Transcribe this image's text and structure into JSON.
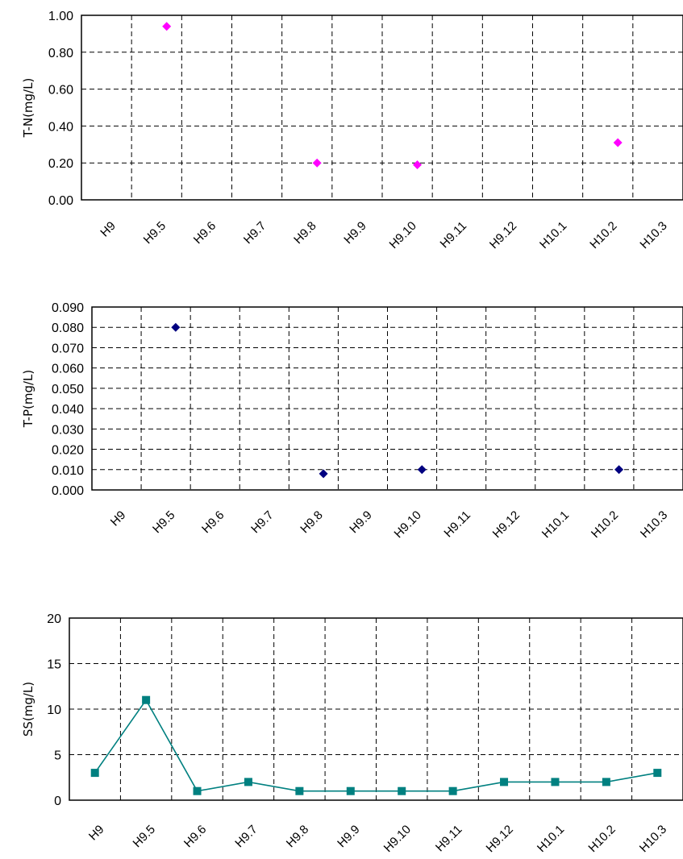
{
  "chart_data": [
    {
      "type": "scatter",
      "ylabel": "T-N(mg/L)",
      "categories": [
        "H9",
        "H9.5",
        "H9.6",
        "H9.7",
        "H9.8",
        "H9.9",
        "H9.10",
        "H9.11",
        "H9.12",
        "H10.1",
        "H10.2",
        "H10.3"
      ],
      "ylim": [
        0,
        1.0
      ],
      "yticks": [
        "0.00",
        "0.20",
        "0.40",
        "0.60",
        "0.80",
        "1.00"
      ],
      "grid": true,
      "marker_color": "#ff00ff",
      "marker": "diamond",
      "series": [
        {
          "points": [
            {
              "x": 1.2,
              "y": 0.94
            },
            {
              "x": 4.2,
              "y": 0.2
            },
            {
              "x": 6.2,
              "y": 0.19
            },
            {
              "x": 10.2,
              "y": 0.31
            }
          ]
        }
      ]
    },
    {
      "type": "scatter",
      "ylabel": "T-P(mg/L)",
      "categories": [
        "H9",
        "H9.5",
        "H9.6",
        "H9.7",
        "H9.8",
        "H9.9",
        "H9.10",
        "H9.11",
        "H9.12",
        "H10.1",
        "H10.2",
        "H10.3"
      ],
      "ylim": [
        0,
        0.09
      ],
      "yticks": [
        "0.000",
        "0.010",
        "0.020",
        "0.030",
        "0.040",
        "0.050",
        "0.060",
        "0.070",
        "0.080",
        "0.090"
      ],
      "grid": true,
      "marker_color": "#000080",
      "marker": "diamond",
      "series": [
        {
          "points": [
            {
              "x": 1.2,
              "y": 0.08
            },
            {
              "x": 4.2,
              "y": 0.008
            },
            {
              "x": 6.2,
              "y": 0.01
            },
            {
              "x": 10.2,
              "y": 0.01
            }
          ]
        }
      ]
    },
    {
      "type": "line",
      "ylabel": "SS(mg/L)",
      "categories": [
        "H9",
        "H9.5",
        "H9.6",
        "H9.7",
        "H9.8",
        "H9.9",
        "H9.10",
        "H9.11",
        "H9.12",
        "H10.1",
        "H10.2",
        "H10.3"
      ],
      "ylim": [
        0,
        20
      ],
      "yticks": [
        "0",
        "5",
        "10",
        "15",
        "20"
      ],
      "grid": true,
      "marker_color": "#008080",
      "marker": "square",
      "series": [
        {
          "values": [
            3,
            11,
            1,
            2,
            1,
            1,
            1,
            1,
            2,
            2,
            2,
            3
          ]
        }
      ]
    }
  ]
}
